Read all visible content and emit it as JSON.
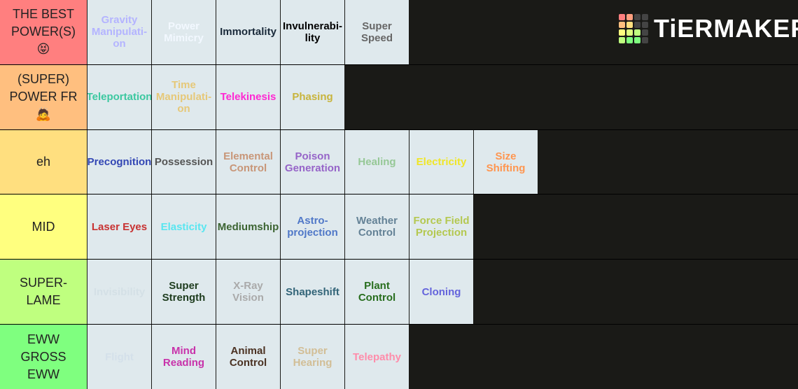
{
  "logo": "TiERMAKER",
  "tiers": [
    {
      "label": "THE BEST POWER(S) 😝",
      "color": "#ff7f7f",
      "items": [
        {
          "text": "Gravity Manipulati­on",
          "color": "#b4b4ff"
        },
        {
          "text": "Power Mimicry",
          "color": "#f2f8ff"
        },
        {
          "text": "Immortality",
          "color": "#1a2a3a"
        },
        {
          "text": "Invulnerabi­lity",
          "color": "#000000"
        },
        {
          "text": "Super Speed",
          "color": "#666666"
        }
      ]
    },
    {
      "label": "(SUPER) POWER FR 🙇",
      "color": "#ffbf7f",
      "items": [
        {
          "text": "Teleportation",
          "color": "#3cc8a0"
        },
        {
          "text": "Time Manipulati­on",
          "color": "#e6c878"
        },
        {
          "text": "Telekinesis",
          "color": "#ff28d2"
        },
        {
          "text": "Phasing",
          "color": "#c8b43c"
        }
      ]
    },
    {
      "label": "eh",
      "color": "#ffdf7f",
      "items": [
        {
          "text": "Precognition",
          "color": "#3246b4"
        },
        {
          "text": "Possession",
          "color": "#555555"
        },
        {
          "text": "Elemental Control",
          "color": "#c89678"
        },
        {
          "text": "Poison Generation",
          "color": "#9664c8"
        },
        {
          "text": "Healing",
          "color": "#96c896"
        },
        {
          "text": "Electricity",
          "color": "#f0e628"
        },
        {
          "text": "Size Shifting",
          "color": "#ff9650"
        }
      ]
    },
    {
      "label": "MID",
      "color": "#ffff7f",
      "items": [
        {
          "text": "Laser Eyes",
          "color": "#c83232"
        },
        {
          "text": "Elasticity",
          "color": "#5ae6f0"
        },
        {
          "text": "Mediumship",
          "color": "#3c6432"
        },
        {
          "text": "Astro-projection",
          "color": "#5078c8"
        },
        {
          "text": "Weather Control",
          "color": "#648296"
        },
        {
          "text": "Force Field Projection",
          "color": "#b4c850"
        }
      ]
    },
    {
      "label": "SUPER-LAME",
      "color": "#bfff7f",
      "items": [
        {
          "text": "Invisibility",
          "color": "#d4e0e6"
        },
        {
          "text": "Super Strength",
          "color": "#1e3c1e"
        },
        {
          "text": "X-Ray Vision",
          "color": "#aaaaaa"
        },
        {
          "text": "Shapeshift",
          "color": "#326478"
        },
        {
          "text": "Plant Control",
          "color": "#286e1e"
        },
        {
          "text": "Cloning",
          "color": "#6464dc"
        }
      ]
    },
    {
      "label": "EWW GROSS EWW",
      "color": "#7fff7f",
      "items": [
        {
          "text": "Flight",
          "color": "#d4e0ea"
        },
        {
          "text": "Mind Reading",
          "color": "#c832aa"
        },
        {
          "text": "Animal Control",
          "color": "#4b3223"
        },
        {
          "text": "Super Hearing",
          "color": "#d2be96"
        },
        {
          "text": "Telepathy",
          "color": "#ff8caa"
        }
      ]
    }
  ]
}
